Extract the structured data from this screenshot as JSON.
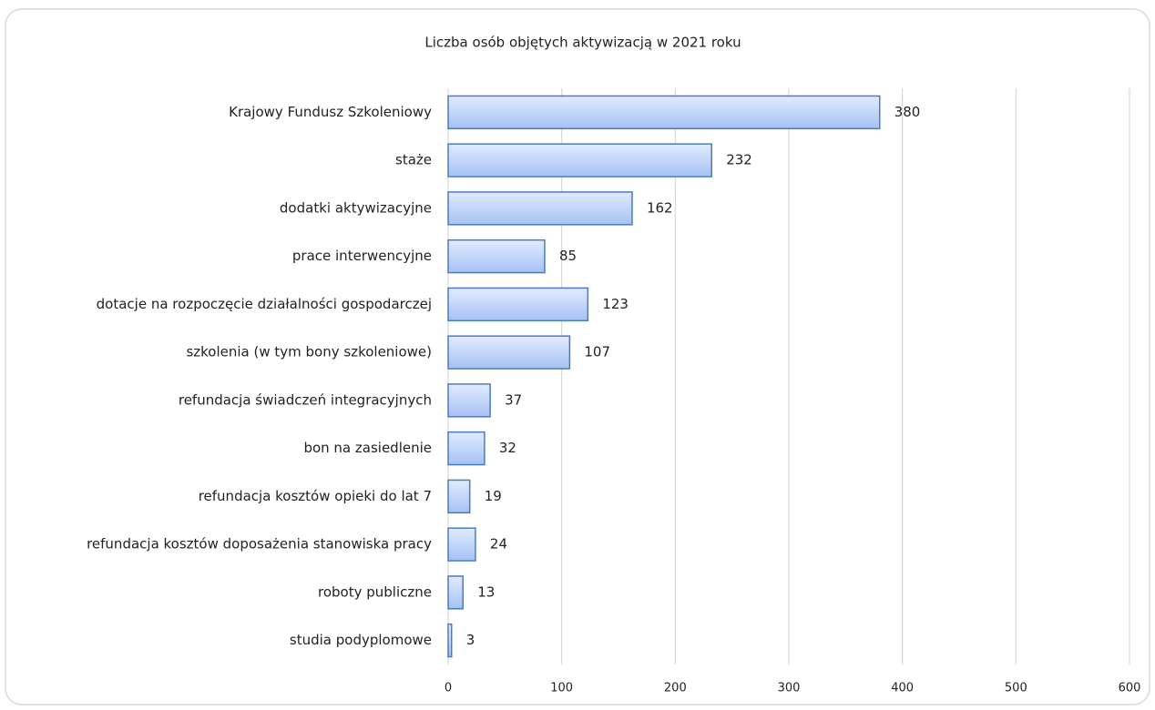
{
  "chart_data": {
    "type": "bar",
    "orientation": "horizontal",
    "title": "Liczba osób objętych aktywizacją w 2021 roku",
    "categories": [
      "Krajowy Fundusz Szkoleniowy",
      "staże",
      "dodatki aktywizacyjne",
      "prace interwencyjne",
      "dotacje na rozpoczęcie działalności gospodarczej",
      "szkolenia (w tym bony szkoleniowe)",
      "refundacja świadczeń integracyjnych",
      "bon na zasiedlenie",
      "refundacja kosztów opieki do lat 7",
      "refundacja kosztów doposażenia stanowiska pracy",
      "roboty publiczne",
      "studia podyplomowe"
    ],
    "values": [
      380,
      232,
      162,
      85,
      123,
      107,
      37,
      32,
      19,
      24,
      13,
      3
    ],
    "color": "#4a7bc0",
    "xlim": [
      0,
      600
    ],
    "xticks": [
      0,
      100,
      200,
      300,
      400,
      500,
      600
    ],
    "grid": true
  }
}
